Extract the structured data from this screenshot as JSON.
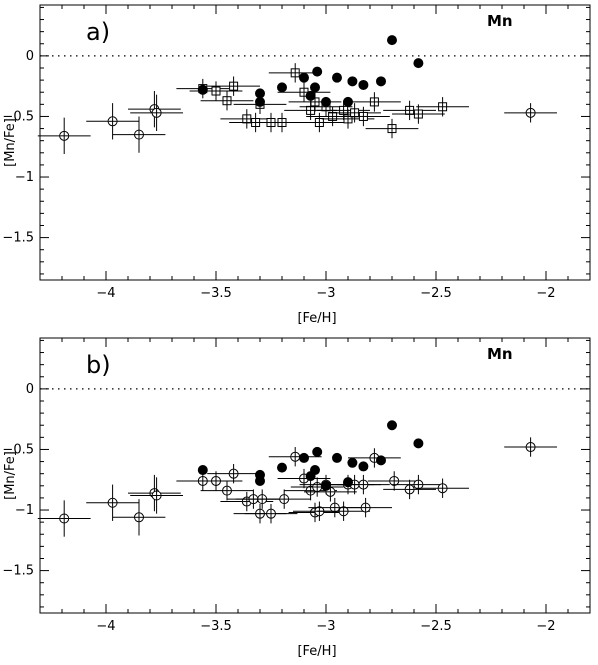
{
  "chart_data": [
    {
      "type": "scatter",
      "panel_label": "a)",
      "element_label": "Mn",
      "xlabel": "[Fe/H]",
      "ylabel": "[Mn/Fe]",
      "xlim": [
        -4.3,
        -1.8
      ],
      "ylim": [
        -1.85,
        0.42
      ],
      "xticks": [
        -4,
        -3.5,
        -3,
        -2.5,
        -2
      ],
      "xtick_labels": [
        "−4",
        "−3.5",
        "−3",
        "−2.5",
        "−2"
      ],
      "yticks": [
        0,
        -0.5,
        -1,
        -1.5
      ],
      "ytick_labels": [
        "0",
        "−0.5",
        "−1",
        "−1.5"
      ],
      "reference_line": 0,
      "series": [
        {
          "marker": "open-circle",
          "points": [
            {
              "x": -4.19,
              "y": -0.66,
              "xerr": 0.12,
              "yerr": 0.15
            },
            {
              "x": -3.97,
              "y": -0.54,
              "xerr": 0.12,
              "yerr": 0.15
            },
            {
              "x": -3.85,
              "y": -0.65,
              "xerr": 0.12,
              "yerr": 0.15
            },
            {
              "x": -3.78,
              "y": -0.44,
              "xerr": 0.12,
              "yerr": 0.15
            },
            {
              "x": -3.77,
              "y": -0.47,
              "xerr": 0.12,
              "yerr": 0.15
            },
            {
              "x": -2.07,
              "y": -0.47,
              "xerr": 0.12,
              "yerr": 0.08
            }
          ]
        },
        {
          "marker": "open-square",
          "points": [
            {
              "x": -3.56,
              "y": -0.27,
              "xerr": 0.12,
              "yerr": 0.08
            },
            {
              "x": -3.5,
              "y": -0.29,
              "xerr": 0.12,
              "yerr": 0.08
            },
            {
              "x": -3.45,
              "y": -0.37,
              "xerr": 0.12,
              "yerr": 0.08
            },
            {
              "x": -3.42,
              "y": -0.25,
              "xerr": 0.12,
              "yerr": 0.08
            },
            {
              "x": -3.36,
              "y": -0.52,
              "xerr": 0.12,
              "yerr": 0.08
            },
            {
              "x": -3.32,
              "y": -0.55,
              "xerr": 0.12,
              "yerr": 0.08
            },
            {
              "x": -3.3,
              "y": -0.4,
              "xerr": 0.12,
              "yerr": 0.08
            },
            {
              "x": -3.25,
              "y": -0.55,
              "xerr": 0.12,
              "yerr": 0.08
            },
            {
              "x": -3.2,
              "y": -0.55,
              "xerr": 0.12,
              "yerr": 0.08
            },
            {
              "x": -3.14,
              "y": -0.14,
              "xerr": 0.12,
              "yerr": 0.08
            },
            {
              "x": -3.1,
              "y": -0.3,
              "xerr": 0.12,
              "yerr": 0.08
            },
            {
              "x": -3.07,
              "y": -0.45,
              "xerr": 0.12,
              "yerr": 0.08
            },
            {
              "x": -3.05,
              "y": -0.38,
              "xerr": 0.12,
              "yerr": 0.08
            },
            {
              "x": -3.03,
              "y": -0.55,
              "xerr": 0.12,
              "yerr": 0.08
            },
            {
              "x": -3.0,
              "y": -0.42,
              "xerr": 0.12,
              "yerr": 0.08
            },
            {
              "x": -2.97,
              "y": -0.5,
              "xerr": 0.12,
              "yerr": 0.08
            },
            {
              "x": -2.92,
              "y": -0.45,
              "xerr": 0.12,
              "yerr": 0.08
            },
            {
              "x": -2.9,
              "y": -0.52,
              "xerr": 0.12,
              "yerr": 0.08
            },
            {
              "x": -2.87,
              "y": -0.47,
              "xerr": 0.12,
              "yerr": 0.08
            },
            {
              "x": -2.83,
              "y": -0.5,
              "xerr": 0.12,
              "yerr": 0.08
            },
            {
              "x": -2.78,
              "y": -0.38,
              "xerr": 0.12,
              "yerr": 0.08
            },
            {
              "x": -2.7,
              "y": -0.6,
              "xerr": 0.12,
              "yerr": 0.08
            },
            {
              "x": -2.62,
              "y": -0.45,
              "xerr": 0.12,
              "yerr": 0.08
            },
            {
              "x": -2.58,
              "y": -0.48,
              "xerr": 0.12,
              "yerr": 0.08
            },
            {
              "x": -2.47,
              "y": -0.42,
              "xerr": 0.12,
              "yerr": 0.08
            }
          ]
        },
        {
          "marker": "filled-circle",
          "points": [
            {
              "x": -3.56,
              "y": -0.28
            },
            {
              "x": -3.3,
              "y": -0.31
            },
            {
              "x": -3.3,
              "y": -0.38
            },
            {
              "x": -3.2,
              "y": -0.26
            },
            {
              "x": -3.1,
              "y": -0.18
            },
            {
              "x": -3.07,
              "y": -0.33
            },
            {
              "x": -3.05,
              "y": -0.26
            },
            {
              "x": -3.04,
              "y": -0.13
            },
            {
              "x": -3.0,
              "y": -0.38
            },
            {
              "x": -2.95,
              "y": -0.18
            },
            {
              "x": -2.9,
              "y": -0.38
            },
            {
              "x": -2.88,
              "y": -0.21
            },
            {
              "x": -2.83,
              "y": -0.24
            },
            {
              "x": -2.75,
              "y": -0.21
            },
            {
              "x": -2.7,
              "y": 0.13
            },
            {
              "x": -2.58,
              "y": -0.06
            }
          ]
        }
      ]
    },
    {
      "type": "scatter",
      "panel_label": "b)",
      "element_label": "Mn",
      "xlabel": "[Fe/H]",
      "ylabel": "[Mn/Fe]",
      "xlim": [
        -4.3,
        -1.8
      ],
      "ylim": [
        -1.85,
        0.42
      ],
      "xticks": [
        -4,
        -3.5,
        -3,
        -2.5,
        -2
      ],
      "xtick_labels": [
        "−4",
        "−3.5",
        "−3",
        "−2.5",
        "−2"
      ],
      "yticks": [
        0,
        -0.5,
        -1,
        -1.5
      ],
      "ytick_labels": [
        "0",
        "−0.5",
        "−1",
        "−1.5"
      ],
      "reference_line": 0,
      "series": [
        {
          "marker": "open-circle",
          "points": [
            {
              "x": -4.19,
              "y": -1.07,
              "xerr": 0.12,
              "yerr": 0.15
            },
            {
              "x": -3.97,
              "y": -0.94,
              "xerr": 0.12,
              "yerr": 0.15
            },
            {
              "x": -3.85,
              "y": -1.06,
              "xerr": 0.12,
              "yerr": 0.15
            },
            {
              "x": -3.78,
              "y": -0.86,
              "xerr": 0.12,
              "yerr": 0.15
            },
            {
              "x": -3.77,
              "y": -0.88,
              "xerr": 0.12,
              "yerr": 0.15
            },
            {
              "x": -3.56,
              "y": -0.76,
              "xerr": 0.12,
              "yerr": 0.08
            },
            {
              "x": -3.5,
              "y": -0.76,
              "xerr": 0.12,
              "yerr": 0.08
            },
            {
              "x": -3.45,
              "y": -0.84,
              "xerr": 0.12,
              "yerr": 0.08
            },
            {
              "x": -3.42,
              "y": -0.7,
              "xerr": 0.12,
              "yerr": 0.08
            },
            {
              "x": -3.36,
              "y": -0.93,
              "xerr": 0.12,
              "yerr": 0.08
            },
            {
              "x": -3.33,
              "y": -0.91,
              "xerr": 0.12,
              "yerr": 0.08
            },
            {
              "x": -3.3,
              "y": -1.03,
              "xerr": 0.12,
              "yerr": 0.08
            },
            {
              "x": -3.29,
              "y": -0.91,
              "xerr": 0.12,
              "yerr": 0.08
            },
            {
              "x": -3.25,
              "y": -1.03,
              "xerr": 0.12,
              "yerr": 0.08
            },
            {
              "x": -3.19,
              "y": -0.91,
              "xerr": 0.12,
              "yerr": 0.08
            },
            {
              "x": -3.14,
              "y": -0.56,
              "xerr": 0.12,
              "yerr": 0.08
            },
            {
              "x": -3.1,
              "y": -0.74,
              "xerr": 0.12,
              "yerr": 0.08
            },
            {
              "x": -3.07,
              "y": -0.84,
              "xerr": 0.12,
              "yerr": 0.08
            },
            {
              "x": -3.05,
              "y": -1.02,
              "xerr": 0.12,
              "yerr": 0.08
            },
            {
              "x": -3.04,
              "y": -0.81,
              "xerr": 0.12,
              "yerr": 0.08
            },
            {
              "x": -3.03,
              "y": -1.01,
              "xerr": 0.12,
              "yerr": 0.08
            },
            {
              "x": -3.0,
              "y": -0.79,
              "xerr": 0.12,
              "yerr": 0.08
            },
            {
              "x": -2.98,
              "y": -0.85,
              "xerr": 0.12,
              "yerr": 0.08
            },
            {
              "x": -2.96,
              "y": -0.98,
              "xerr": 0.12,
              "yerr": 0.08
            },
            {
              "x": -2.92,
              "y": -1.01,
              "xerr": 0.12,
              "yerr": 0.08
            },
            {
              "x": -2.9,
              "y": -0.79,
              "xerr": 0.12,
              "yerr": 0.08
            },
            {
              "x": -2.87,
              "y": -0.79,
              "xerr": 0.12,
              "yerr": 0.08
            },
            {
              "x": -2.83,
              "y": -0.79,
              "xerr": 0.12,
              "yerr": 0.08
            },
            {
              "x": -2.82,
              "y": -0.98,
              "xerr": 0.12,
              "yerr": 0.08
            },
            {
              "x": -2.78,
              "y": -0.57,
              "xerr": 0.12,
              "yerr": 0.08
            },
            {
              "x": -2.69,
              "y": -0.76,
              "xerr": 0.12,
              "yerr": 0.08
            },
            {
              "x": -2.62,
              "y": -0.83,
              "xerr": 0.12,
              "yerr": 0.08
            },
            {
              "x": -2.58,
              "y": -0.79,
              "xerr": 0.12,
              "yerr": 0.08
            },
            {
              "x": -2.47,
              "y": -0.82,
              "xerr": 0.12,
              "yerr": 0.08
            },
            {
              "x": -2.07,
              "y": -0.48,
              "xerr": 0.12,
              "yerr": 0.08
            }
          ]
        },
        {
          "marker": "filled-circle",
          "points": [
            {
              "x": -3.56,
              "y": -0.67
            },
            {
              "x": -3.3,
              "y": -0.71
            },
            {
              "x": -3.3,
              "y": -0.76
            },
            {
              "x": -3.2,
              "y": -0.65
            },
            {
              "x": -3.1,
              "y": -0.57
            },
            {
              "x": -3.07,
              "y": -0.72
            },
            {
              "x": -3.05,
              "y": -0.67
            },
            {
              "x": -3.04,
              "y": -0.52
            },
            {
              "x": -3.0,
              "y": -0.8
            },
            {
              "x": -2.95,
              "y": -0.57
            },
            {
              "x": -2.9,
              "y": -0.77
            },
            {
              "x": -2.88,
              "y": -0.61
            },
            {
              "x": -2.83,
              "y": -0.64
            },
            {
              "x": -2.75,
              "y": -0.59
            },
            {
              "x": -2.7,
              "y": -0.3
            },
            {
              "x": -2.58,
              "y": -0.45
            }
          ]
        }
      ]
    }
  ]
}
